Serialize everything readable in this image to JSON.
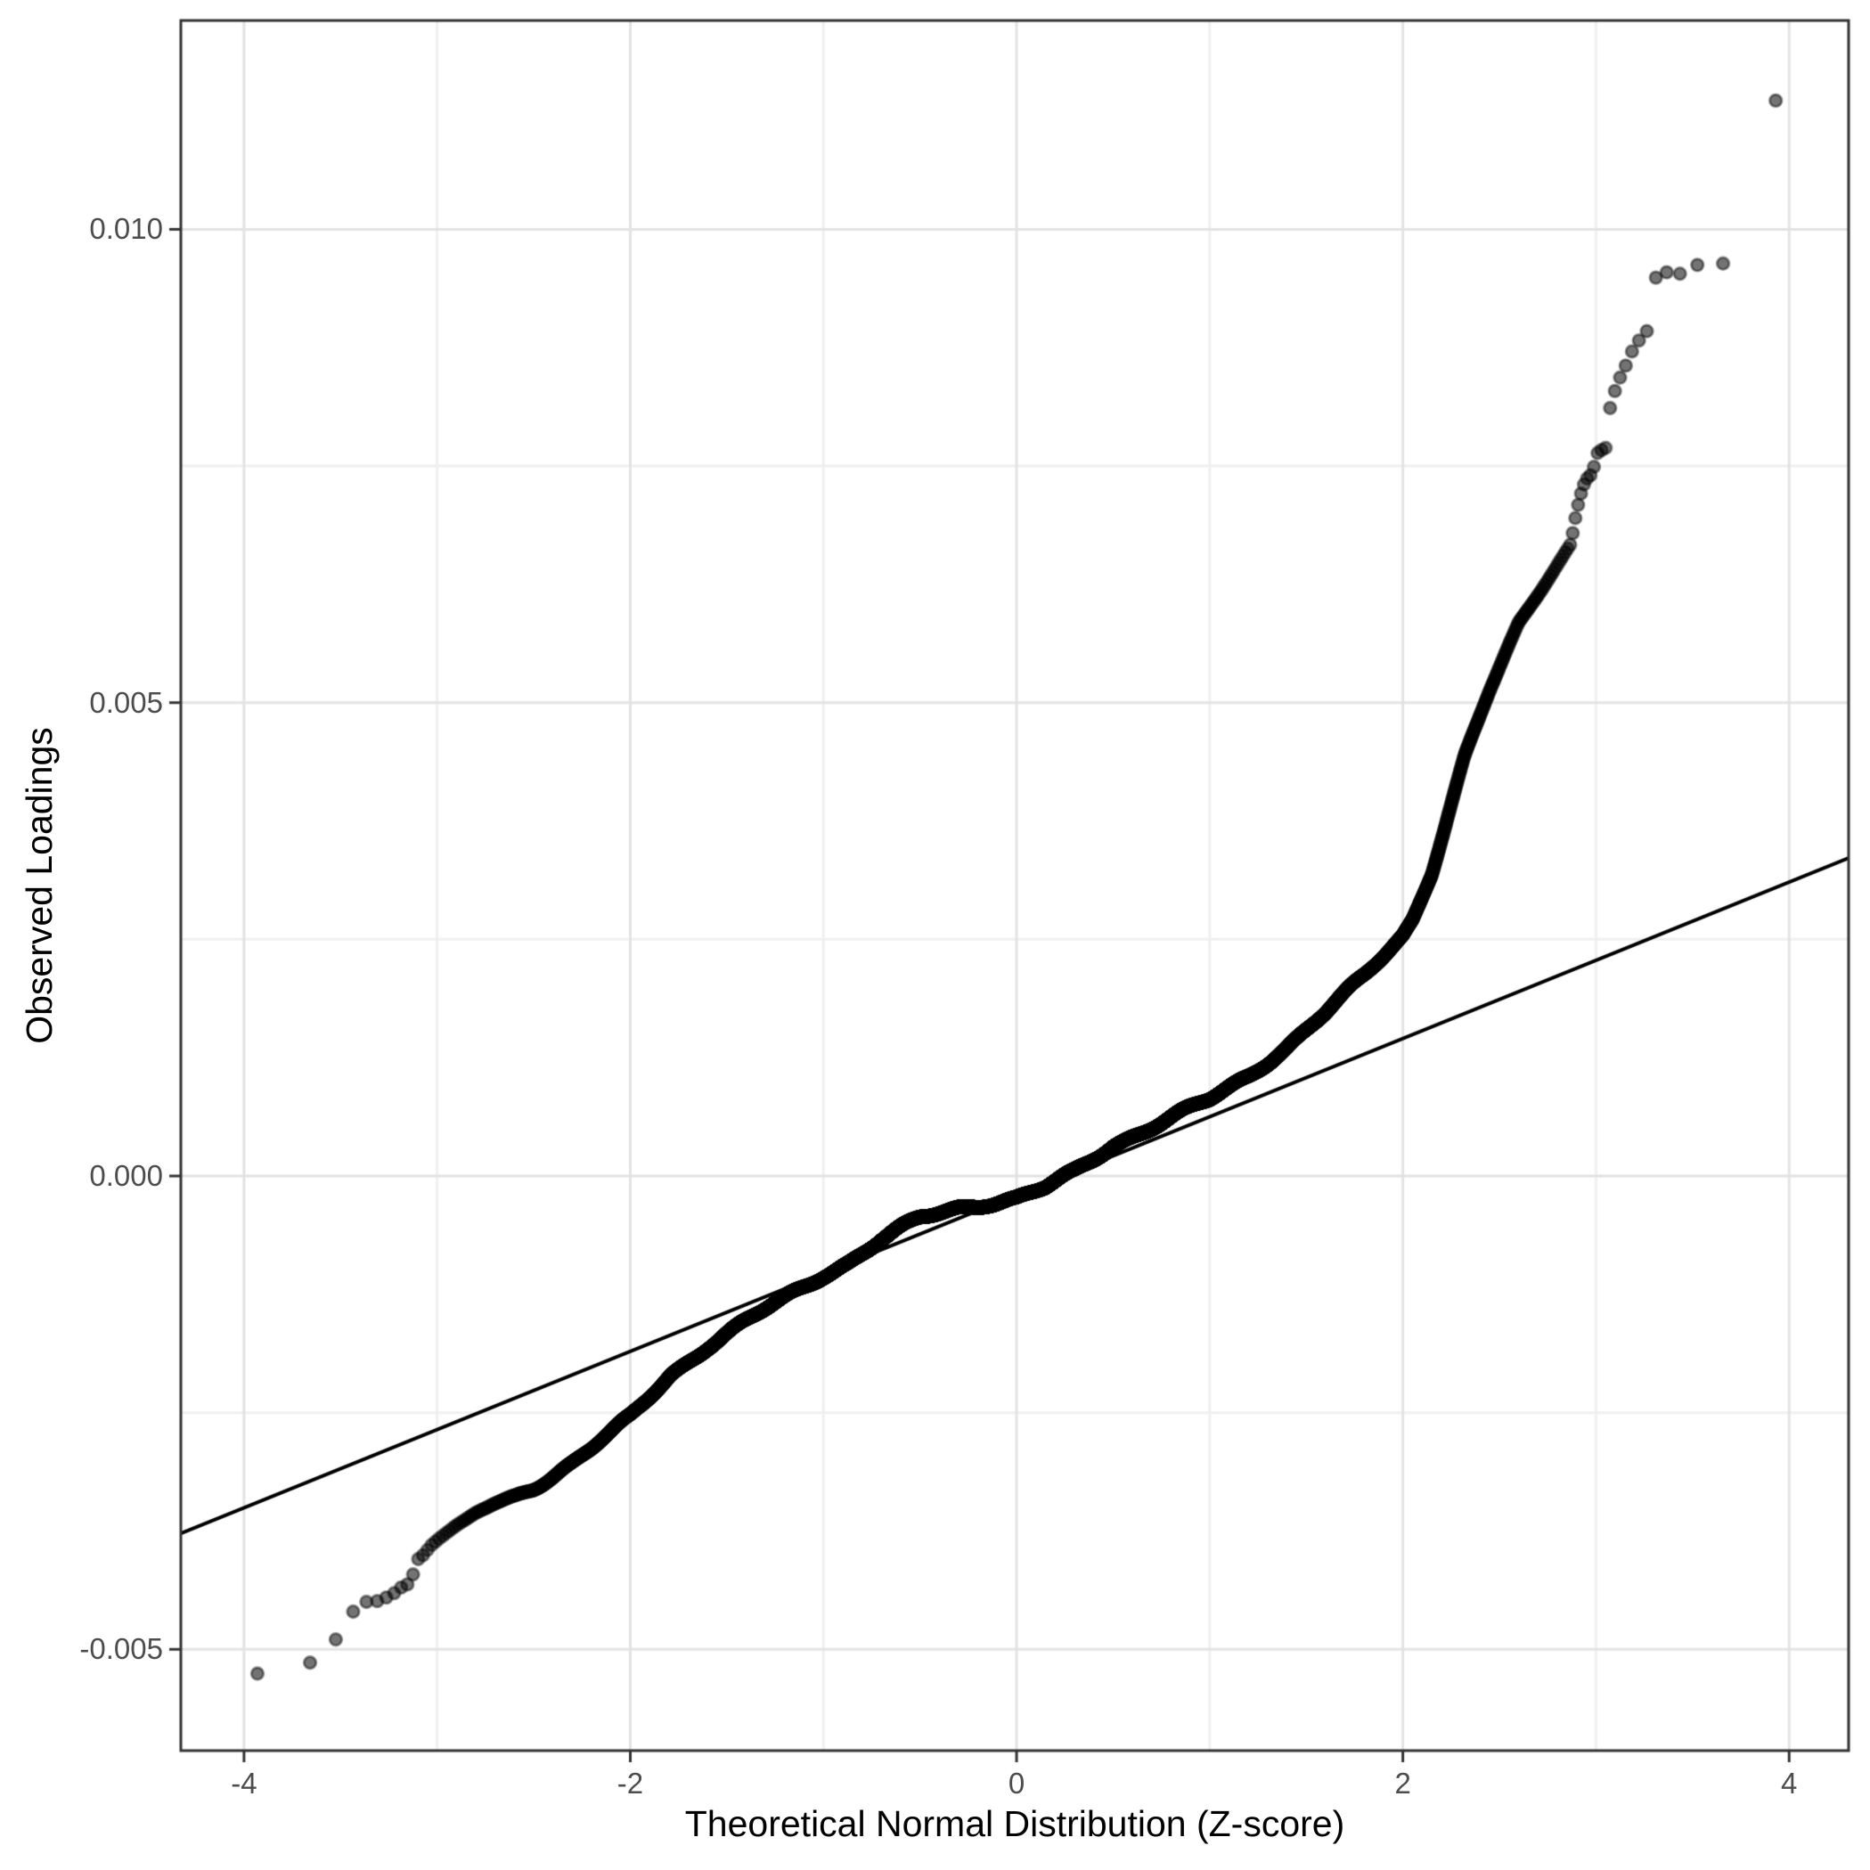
{
  "axes": {
    "x": {
      "label": "Theoretical Normal Distribution (Z-score)",
      "tick_labels": [
        "-4",
        "-2",
        "0",
        "2",
        "4"
      ],
      "tick_values": [
        -4,
        -2,
        0,
        2,
        4
      ],
      "minor_gridlines": [
        -3,
        -1,
        1,
        3
      ],
      "range": [
        -4.327,
        4.308
      ]
    },
    "y": {
      "label": "Observed Loadings",
      "tick_labels": [
        "0.010",
        "0.005",
        "0.000",
        "-0.005"
      ],
      "tick_values": [
        0.01,
        0.005,
        0.0,
        -0.005
      ],
      "minor_gridlines": [
        0.0075,
        0.0025,
        -0.0025
      ],
      "range": [
        -0.00607,
        0.012206
      ]
    }
  },
  "style": {
    "background": "#ffffff",
    "panel_background": "#ffffff",
    "panel_border": "#333333",
    "grid_major": "#e3e3e3",
    "grid_minor": "#f0f0f0",
    "tick_color": "#333333",
    "tick_label_color": "#4d4d4d",
    "axis_title_color": "#000000",
    "point_fill": "rgba(0,0,0,0.55)",
    "point_stroke": "rgba(0,0,0,0.42)",
    "reference_line_color": "#000000"
  },
  "chart_data": {
    "type": "scatter",
    "subtype": "normal-qq-plot",
    "title": "",
    "xlabel": "Theoretical Normal Distribution (Z-score)",
    "ylabel": "Observed Loadings",
    "xlim": [
      -4.327,
      4.308
    ],
    "ylim": [
      -0.00607,
      0.012206
    ],
    "grid": "major-and-minor",
    "legend": "none",
    "n_points": 11800,
    "point_generation": "z_i = inverse_normal_cdf((i-0.5)/n_points); observed_i = interpolate(curve_anchors, z_i)",
    "curve_anchors": {
      "z": [
        -3.94,
        -3.67,
        -3.54,
        -3.45,
        -3.38,
        -3.31,
        -3.26,
        -3.23,
        -3.19,
        -3.15,
        -3.12,
        -3.1,
        -3.07,
        -3.03,
        -2.99,
        -2.9,
        -2.8,
        -2.71,
        -2.6,
        -2.5,
        -2.4,
        -2.3,
        -2.2,
        -2.1,
        -2.0,
        -1.9,
        -1.79,
        -1.6,
        -1.4,
        -1.2,
        -1.0,
        -0.87,
        -0.7,
        -0.5,
        -0.3,
        -0.15,
        0.0,
        0.15,
        0.3,
        0.5,
        0.7,
        1.0,
        1.2,
        1.4,
        1.6,
        1.8,
        2.0,
        2.05,
        2.15,
        2.32,
        2.45,
        2.6,
        2.75,
        2.87,
        2.9,
        2.93,
        2.95,
        2.98,
        3.01,
        3.05,
        3.07,
        3.11,
        3.14,
        3.18,
        3.23,
        3.27,
        3.3,
        3.37,
        3.44,
        3.53,
        3.67,
        3.93
      ],
      "observed": [
        -0.00526,
        -0.00516,
        -0.00495,
        -0.00463,
        -0.0045,
        -0.00449,
        -0.00445,
        -0.00442,
        -0.00435,
        -0.00431,
        -0.00419,
        -0.00405,
        -0.004,
        -0.0039,
        -0.00383,
        -0.00369,
        -0.00356,
        -0.00347,
        -0.00338,
        -0.00328,
        -0.00316,
        -0.00303,
        -0.00288,
        -0.00272,
        -0.00255,
        -0.00233,
        -0.00209,
        -0.0018,
        -0.00154,
        -0.00129,
        -0.00104,
        -0.00091,
        -0.00068,
        -0.00045,
        -0.00033,
        -0.00028,
        -0.00024,
        -0.00013,
        4e-05,
        0.00033,
        0.00052,
        0.0008,
        0.00106,
        0.00137,
        0.00172,
        0.00211,
        0.00255,
        0.00272,
        0.00322,
        0.00442,
        0.00512,
        0.00583,
        0.0063,
        0.00668,
        0.00703,
        0.00727,
        0.00736,
        0.00742,
        0.00765,
        0.00769,
        0.00809,
        0.00838,
        0.00849,
        0.00869,
        0.00885,
        0.00894,
        0.00948,
        0.00955,
        0.00953,
        0.00963,
        0.00964,
        0.01136
      ]
    },
    "reference_line": {
      "slope": 0.000826,
      "intercept": -0.0002
    },
    "extreme_points": {
      "lowest": [
        -3.94,
        -0.00526
      ],
      "highest": [
        3.93,
        0.01136
      ]
    },
    "point_style": {
      "radius_px": 6.8,
      "stroke_width_px": 2.8,
      "fill_alpha": 0.55
    }
  }
}
